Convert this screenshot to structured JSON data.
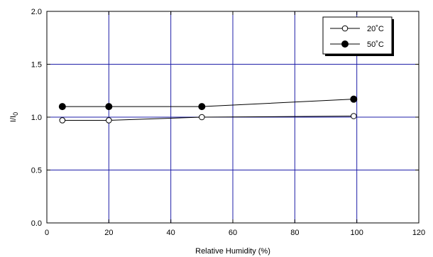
{
  "chart_data": {
    "type": "line",
    "xlabel": "Relative Humidity (%)",
    "ylabel": "I/I0",
    "xlim": [
      0,
      120
    ],
    "ylim": [
      0.0,
      2.0
    ],
    "x_ticks": [
      "0",
      "20",
      "40",
      "60",
      "80",
      "100",
      "120"
    ],
    "y_ticks": [
      "0.0",
      "0.5",
      "1.0",
      "1.5",
      "2.0"
    ],
    "grid": true,
    "legend_position": "top-right",
    "series": [
      {
        "name": "20˚C",
        "marker": "open-circle",
        "x": [
          5,
          20,
          50,
          99
        ],
        "y": [
          0.97,
          0.97,
          1.0,
          1.01
        ]
      },
      {
        "name": "50˚C",
        "marker": "filled-circle",
        "x": [
          5,
          20,
          50,
          99
        ],
        "y": [
          1.1,
          1.1,
          1.1,
          1.17
        ]
      }
    ],
    "colors": {
      "axis": "#000000",
      "grid": "#1f1fa8",
      "series": "#000000"
    }
  }
}
